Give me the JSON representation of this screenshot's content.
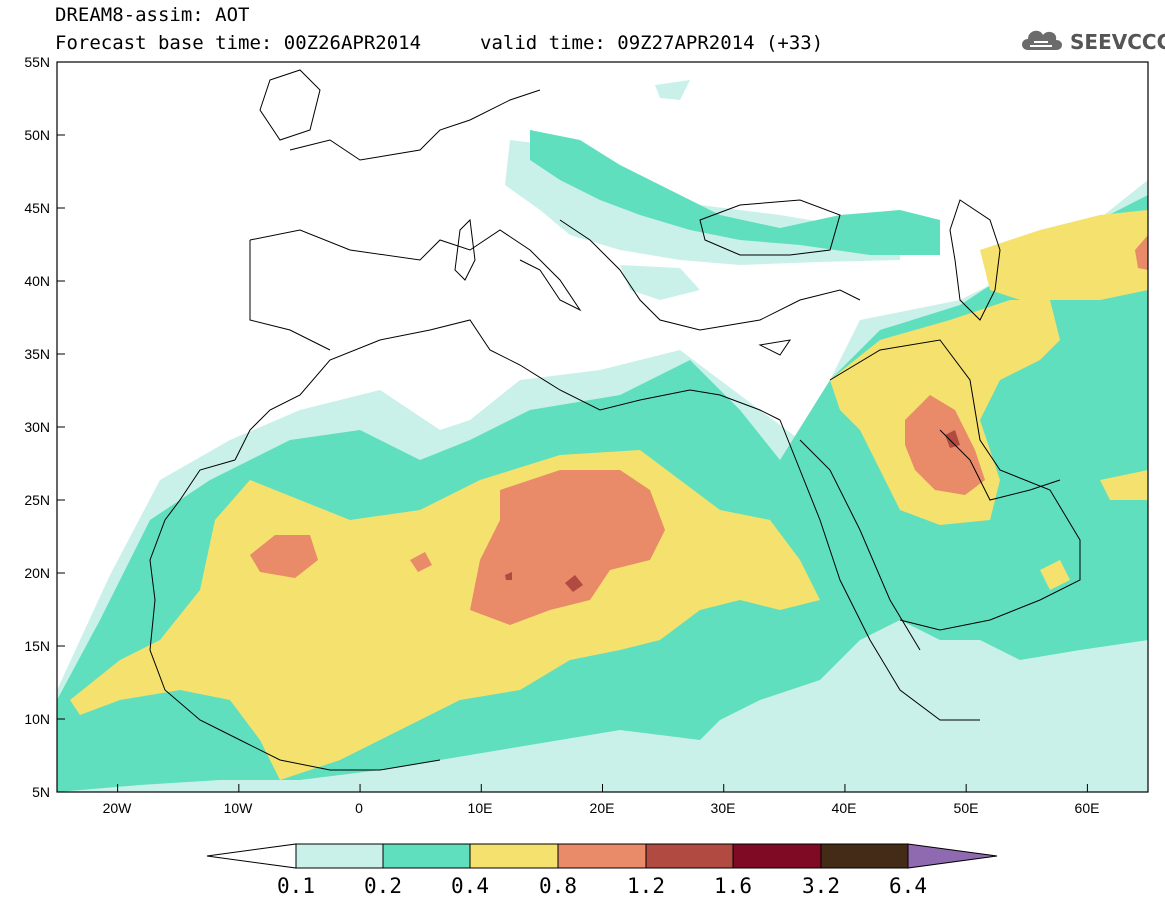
{
  "header": {
    "line1": "DREAM8-assim: AOT",
    "line2": "Forecast base time: 00Z26APR2014",
    "line3": "valid time: 09Z27APR2014 (+33)"
  },
  "logo": {
    "text": "SEEVCCC",
    "icon": "cloud-icon"
  },
  "map": {
    "lat_labels": [
      "55N",
      "50N",
      "45N",
      "40N",
      "35N",
      "30N",
      "25N",
      "20N",
      "15N",
      "10N",
      "5N"
    ],
    "lon_labels": [
      "20W",
      "10W",
      "0",
      "10E",
      "20E",
      "30E",
      "40E",
      "50E",
      "60E"
    ],
    "extent": {
      "lon_min": -25,
      "lon_max": 65,
      "lat_min": 5,
      "lat_max": 55
    }
  },
  "colorbar": {
    "levels": [
      "0.1",
      "0.2",
      "0.4",
      "0.8",
      "1.2",
      "1.6",
      "3.2",
      "6.4"
    ],
    "colors": [
      "#ffffff",
      "#c9f1ea",
      "#5fdfbe",
      "#f5e26e",
      "#e98a68",
      "#b14a41",
      "#7f0a24",
      "#432b18",
      "#8f6ab0"
    ]
  }
}
